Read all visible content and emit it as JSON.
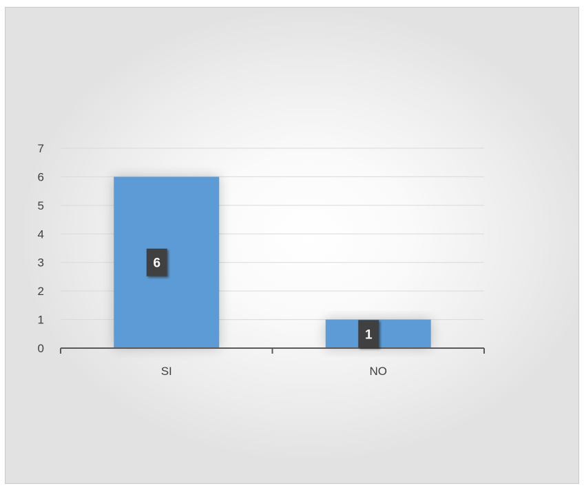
{
  "chart_data": {
    "type": "bar",
    "title": "",
    "xlabel": "",
    "ylabel": "",
    "categories": [
      "SI",
      "NO"
    ],
    "values": [
      6,
      1
    ],
    "data_labels": [
      "6",
      "1"
    ],
    "ylim": [
      0,
      7
    ],
    "yticks": [
      0,
      1,
      2,
      3,
      4,
      5,
      6,
      7
    ],
    "grid": true,
    "legend": "none",
    "colors": {
      "bar": "#5b9bd5",
      "grid": "#d9d9d9",
      "axis": "#595959",
      "data_label_bg": "#404040",
      "data_label_text": "#ffffff"
    }
  }
}
